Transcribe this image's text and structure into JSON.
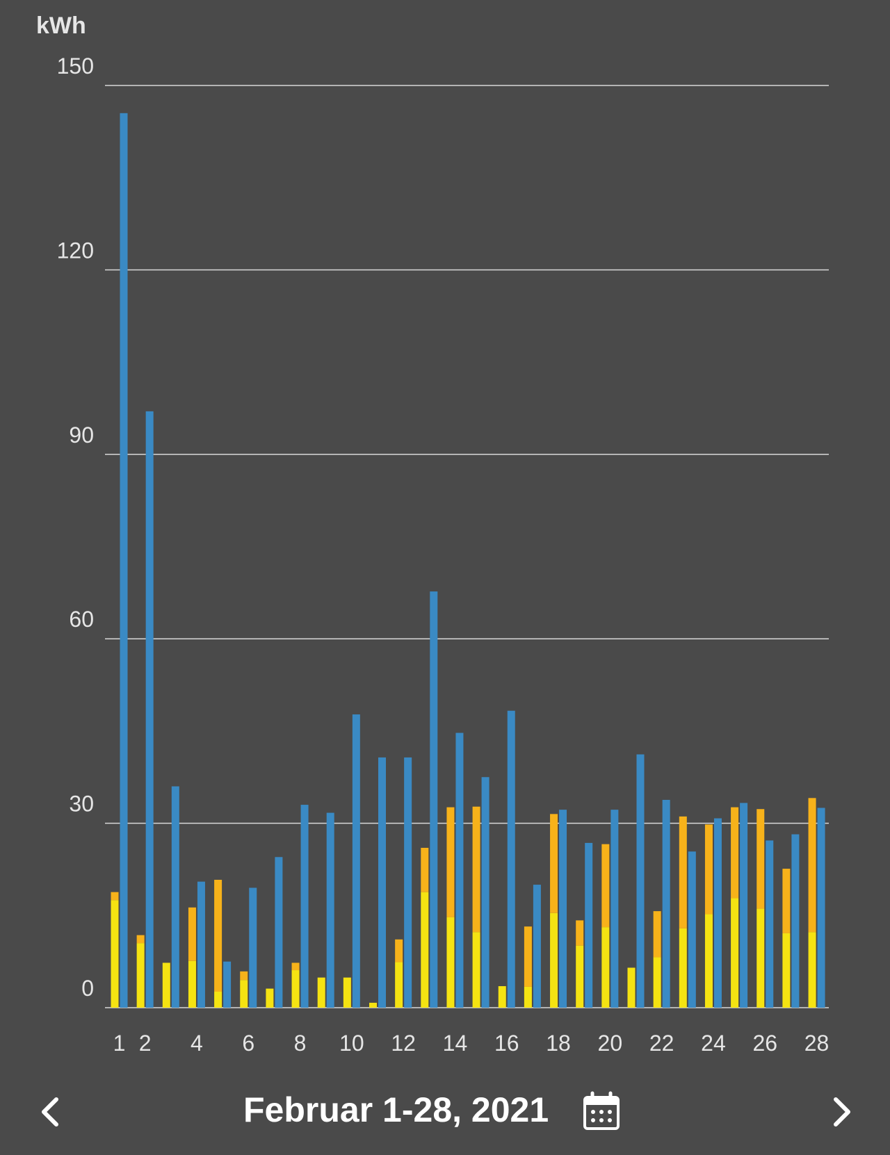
{
  "colors": {
    "background": "#4a4a4a",
    "blue": "#3a8ac4",
    "yellow": "#f5e312",
    "orange": "#f7b21a",
    "grid": "#d8d8d8",
    "text": "#e6e6e6"
  },
  "navigation": {
    "period_label": "Februar 1-28, 2021",
    "prev_icon": "chevron-left-icon",
    "next_icon": "chevron-right-icon",
    "calendar_icon": "calendar-icon"
  },
  "chart_data": {
    "type": "bar",
    "unit_label": "kWh",
    "ylim": [
      0,
      150
    ],
    "yticks": [
      0,
      30,
      60,
      90,
      120,
      150
    ],
    "grid": true,
    "days": [
      1,
      2,
      3,
      4,
      5,
      6,
      7,
      8,
      9,
      10,
      11,
      12,
      13,
      14,
      15,
      16,
      17,
      18,
      19,
      20,
      21,
      22,
      23,
      24,
      25,
      26,
      27,
      28
    ],
    "xtick_labels": [
      "1",
      "2",
      "4",
      "6",
      "8",
      "10",
      "12",
      "14",
      "16",
      "18",
      "20",
      "22",
      "24",
      "26",
      "28"
    ],
    "series": [
      {
        "color": "yellow",
        "stack": "a",
        "values": [
          17.5,
          10.5,
          7.3,
          7.6,
          2.6,
          4.5,
          3.1,
          6.1,
          4.9,
          4.9,
          0.8,
          7.4,
          18.8,
          14.7,
          12.3,
          3.5,
          3.4,
          15.4,
          10.1,
          13.1,
          6.5,
          8.2,
          12.9,
          15.2,
          17.8,
          16.1,
          12.1,
          12.3
        ]
      },
      {
        "color": "orange",
        "stack": "a",
        "values": [
          1.3,
          1.3,
          0,
          8.7,
          18.2,
          1.4,
          0,
          1.2,
          0,
          0,
          0,
          3.7,
          7.2,
          17.9,
          20.4,
          0,
          9.8,
          16.1,
          4.1,
          13.5,
          0,
          7.5,
          18.2,
          14.6,
          14.8,
          16.2,
          10.5,
          21.8
        ]
      },
      {
        "color": "blue",
        "stack": "b",
        "values": [
          145.5,
          97,
          36,
          20.5,
          7.5,
          19.5,
          24.5,
          33,
          31.7,
          47.7,
          40.7,
          40.7,
          67.7,
          44.7,
          37.5,
          48.3,
          20,
          32.2,
          26.8,
          32.2,
          41.2,
          33.8,
          25.4,
          30.8,
          33.3,
          27.2,
          28.2,
          32.5
        ]
      }
    ]
  }
}
